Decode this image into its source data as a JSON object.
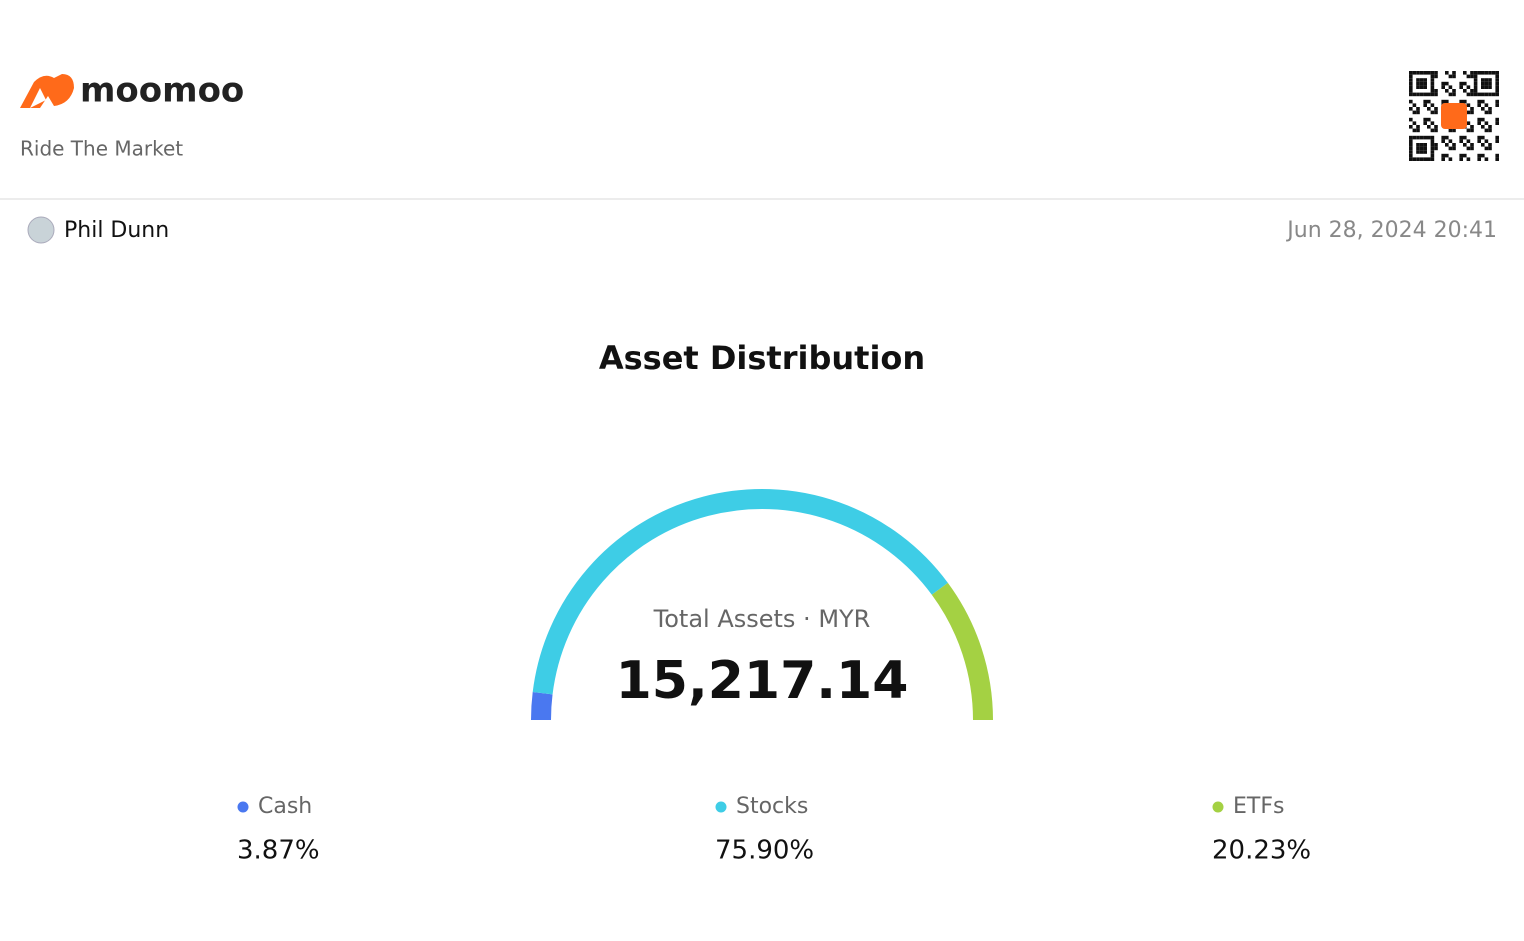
{
  "header": {
    "brand": "moomoo",
    "tagline": "Ride The Market"
  },
  "user": {
    "name": "Phil Dunn",
    "date": "Jun 28, 2024 20:41"
  },
  "chart_data": {
    "type": "gauge",
    "title": "Asset Distribution",
    "subtitle": "Total Assets · MYR",
    "total": "15,217.14",
    "categories": [
      "Cash",
      "Stocks",
      "ETFs"
    ],
    "values": [
      3.87,
      75.9,
      20.23
    ],
    "value_labels": [
      "3.87%",
      "75.90%",
      "20.23%"
    ],
    "colors": [
      "#4a78f0",
      "#3ecde6",
      "#a4d143"
    ]
  }
}
